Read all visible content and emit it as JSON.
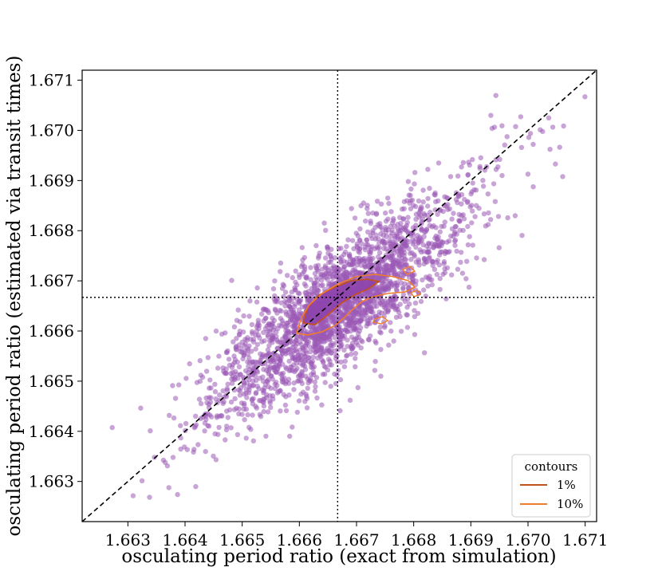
{
  "chart_data": {
    "type": "scatter",
    "xlabel": "osculating period ratio (exact from simulation)",
    "ylabel": "osculating period ratio (estimated via transit times)",
    "xlim": [
      1.6622,
      1.6712
    ],
    "ylim": [
      1.6622,
      1.6712
    ],
    "x_ticks": [
      "1.663",
      "1.664",
      "1.665",
      "1.666",
      "1.667",
      "1.668",
      "1.669",
      "1.670",
      "1.671"
    ],
    "y_ticks": [
      "1.663",
      "1.664",
      "1.665",
      "1.666",
      "1.667",
      "1.668",
      "1.669",
      "1.670",
      "1.671"
    ],
    "reference_lines": {
      "diagonal": "y = x",
      "vertical_x": 1.66667,
      "horizontal_y": 1.66667
    },
    "point_color": "#9b59b6",
    "point_cloud": {
      "center": [
        1.6667,
        1.6665
      ],
      "approx_count": 2500,
      "spread_along_diagonal": 0.0013,
      "spread_across_diagonal": 0.00045
    },
    "legend": {
      "title": "contours",
      "position": "lower-right",
      "entries": [
        {
          "label": "1%",
          "color": "#c4501a"
        },
        {
          "label": "10%",
          "color": "#f07d2a"
        }
      ]
    },
    "grid": false
  }
}
